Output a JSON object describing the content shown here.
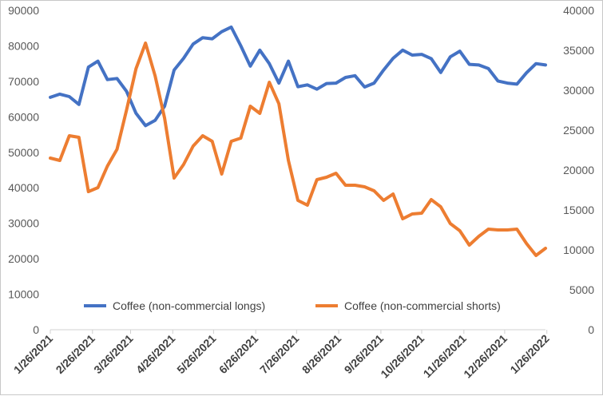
{
  "chart_data": {
    "type": "line",
    "title": "",
    "xlabel": "",
    "ylabel_left": "",
    "ylabel_right": "",
    "ylim_left": [
      0,
      90000
    ],
    "ylim_right": [
      0,
      40000
    ],
    "yticks_left": [
      "0",
      "10000",
      "20000",
      "30000",
      "40000",
      "50000",
      "60000",
      "70000",
      "80000",
      "90000"
    ],
    "yticks_right": [
      "0",
      "5000",
      "10000",
      "15000",
      "20000",
      "25000",
      "30000",
      "35000",
      "40000"
    ],
    "x_tick_labels": [
      "1/26/2021",
      "2/26/2021",
      "3/26/2021",
      "4/26/2021",
      "5/26/2021",
      "6/26/2021",
      "7/26/2021",
      "8/26/2021",
      "9/26/2021",
      "10/26/2021",
      "11/26/2021",
      "12/26/2021",
      "1/26/2022"
    ],
    "grid": false,
    "legend_position": "bottom-inside",
    "x": [
      "2021-01-26",
      "2021-02-02",
      "2021-02-09",
      "2021-02-16",
      "2021-02-23",
      "2021-03-02",
      "2021-03-09",
      "2021-03-16",
      "2021-03-23",
      "2021-03-30",
      "2021-04-06",
      "2021-04-13",
      "2021-04-20",
      "2021-04-27",
      "2021-05-04",
      "2021-05-11",
      "2021-05-18",
      "2021-05-25",
      "2021-06-01",
      "2021-06-08",
      "2021-06-15",
      "2021-06-22",
      "2021-06-29",
      "2021-07-06",
      "2021-07-13",
      "2021-07-20",
      "2021-07-27",
      "2021-08-03",
      "2021-08-10",
      "2021-08-17",
      "2021-08-24",
      "2021-08-31",
      "2021-09-07",
      "2021-09-14",
      "2021-09-21",
      "2021-09-28",
      "2021-10-05",
      "2021-10-12",
      "2021-10-19",
      "2021-10-26",
      "2021-11-02",
      "2021-11-09",
      "2021-11-16",
      "2021-11-23",
      "2021-11-30",
      "2021-12-07",
      "2021-12-14",
      "2021-12-21",
      "2021-12-28",
      "2022-01-04",
      "2022-01-11",
      "2022-01-18",
      "2022-01-25"
    ],
    "series": [
      {
        "name": "Coffee (non-commercial longs)",
        "axis": "left",
        "color": "#4472c4",
        "values": [
          65500,
          66400,
          65700,
          63500,
          74000,
          75700,
          70500,
          70800,
          67200,
          61000,
          57500,
          59000,
          63000,
          73200,
          76500,
          80500,
          82300,
          82000,
          84000,
          85300,
          80000,
          74300,
          78800,
          75000,
          69500,
          75700,
          68500,
          69000,
          67800,
          69400,
          69500,
          71100,
          71600,
          68400,
          69500,
          73200,
          76500,
          78800,
          77400,
          77600,
          76400,
          72500,
          76900,
          78500,
          74800,
          74600,
          73600,
          70100,
          69500,
          69200,
          72400,
          75000,
          74600
        ]
      },
      {
        "name": "Coffee (non-commercial shorts)",
        "axis": "right",
        "color": "#ed7d31",
        "values": [
          21500,
          21200,
          24300,
          24100,
          17300,
          17800,
          20500,
          22600,
          27500,
          32700,
          35900,
          31800,
          26500,
          19000,
          20700,
          23000,
          24300,
          23600,
          19500,
          23600,
          24000,
          28000,
          27100,
          31000,
          28300,
          21200,
          16200,
          15600,
          18800,
          19100,
          19600,
          18100,
          18100,
          17900,
          17400,
          16200,
          17000,
          13900,
          14500,
          14600,
          16300,
          15400,
          13300,
          12400,
          10600,
          11700,
          12600,
          12500,
          12500,
          12600,
          10800,
          9300,
          10200
        ]
      }
    ]
  },
  "legend": {
    "items": [
      "Coffee (non-commercial longs)",
      "Coffee (non-commercial shorts)"
    ]
  }
}
